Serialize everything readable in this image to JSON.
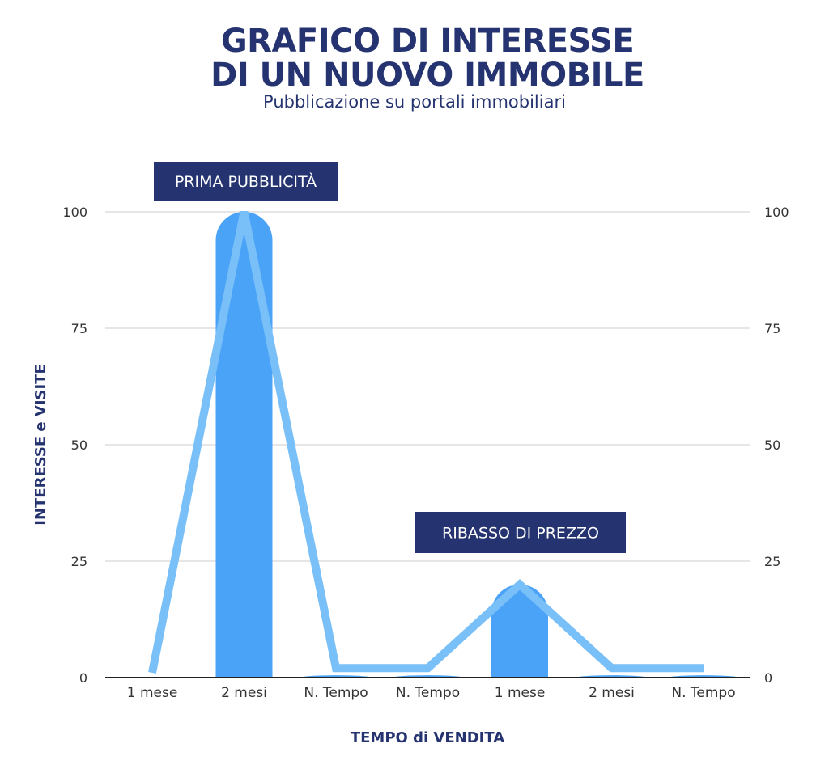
{
  "header": {
    "title_line1": "GRAFICO DI INTERESSE",
    "title_line2": "DI UN NUOVO IMMOBILE",
    "subtitle": "Pubblicazione su portali immobiliari"
  },
  "chart_data": {
    "type": "bar",
    "categories": [
      "1 mese",
      "2 mesi",
      "N. Tempo",
      "N. Tempo",
      "1 mese",
      "2 mesi",
      "N. Tempo"
    ],
    "series": [
      {
        "type": "bar",
        "values": [
          0,
          100,
          0.5,
          0.5,
          20,
          0.5,
          0.5
        ]
      },
      {
        "type": "line",
        "values": [
          0,
          100,
          1,
          1,
          20,
          1,
          1
        ]
      }
    ],
    "xlabel": "TEMPO di VENDITA",
    "ylabel": "INTERESSE e VISITE",
    "ylim": [
      0,
      100
    ],
    "yticks": [
      0,
      25,
      50,
      75,
      100
    ],
    "right_axis_ticks": [
      0,
      25,
      50,
      75,
      100
    ],
    "grid": true,
    "annotations": [
      {
        "text": "PRIMA PUBBLICITÀ",
        "category_index": 1
      },
      {
        "text": "RIBASSO DI PREZZO",
        "category_index": 4
      }
    ],
    "colors": {
      "bar": "#4aa3f7",
      "line": "#79bff8",
      "annotation_bg": "#253470",
      "grid": "#cccccc",
      "axis": "#222222"
    }
  }
}
